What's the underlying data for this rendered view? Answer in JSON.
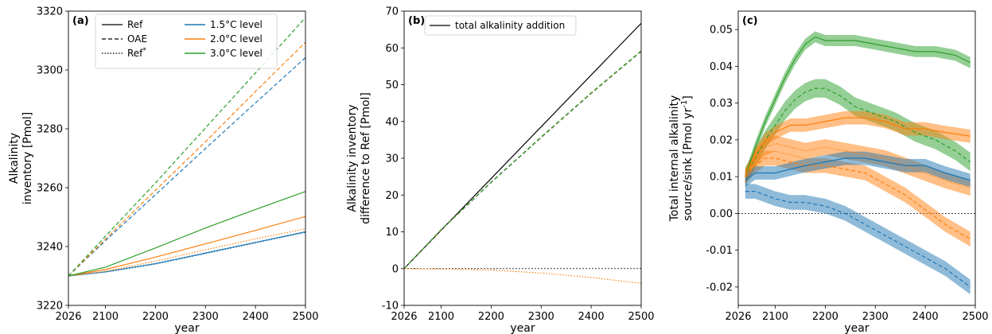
{
  "chart_data": [
    {
      "panel": "a",
      "type": "line",
      "panel_label": "(a)",
      "xlabel": "year",
      "ylabel": [
        "Alkalinity",
        "inventory [Pmol]"
      ],
      "xlim": [
        2026,
        2500
      ],
      "ylim": [
        3220,
        3320
      ],
      "xticks": [
        2026,
        2100,
        2200,
        2300,
        2400,
        2500
      ],
      "yticks": [
        3220,
        3240,
        3260,
        3280,
        3300,
        3320
      ],
      "legend": {
        "placement": "top",
        "styles": [
          {
            "label": "Ref",
            "dash": "solid"
          },
          {
            "label": "OAE",
            "dash": "dashed"
          },
          {
            "label": "Ref*",
            "dash": "dotted"
          }
        ],
        "levels": [
          {
            "label": "1.5°C level",
            "color": "#1f77b4"
          },
          {
            "label": "2.0°C level",
            "color": "#ff7f0e"
          },
          {
            "label": "3.0°C level",
            "color": "#2ca02c"
          }
        ]
      },
      "series": [
        {
          "level": "1.5°C level",
          "style": "solid",
          "x": [
            2026,
            2100,
            2200,
            2300,
            2400,
            2500
          ],
          "y": [
            3230,
            3231.4,
            3234.2,
            3237.8,
            3241.4,
            3245.0
          ]
        },
        {
          "level": "1.5°C level",
          "style": "dotted",
          "x": [
            2026,
            2100,
            2200,
            2300,
            2400,
            2500
          ],
          "y": [
            3230,
            3231.3,
            3234.0,
            3237.6,
            3241.2,
            3244.8
          ]
        },
        {
          "level": "1.5°C level",
          "style": "dashed",
          "x": [
            2026,
            2100,
            2200,
            2300,
            2400,
            2500
          ],
          "y": [
            3230,
            3242.0,
            3257.6,
            3273.3,
            3288.8,
            3304.2
          ]
        },
        {
          "level": "2.0°C level",
          "style": "solid",
          "x": [
            2026,
            2100,
            2200,
            2300,
            2400,
            2500
          ],
          "y": [
            3230,
            3232.2,
            3236.4,
            3240.9,
            3245.5,
            3250.2
          ]
        },
        {
          "level": "2.0°C level",
          "style": "dotted",
          "x": [
            2026,
            2100,
            2200,
            2300,
            2400,
            2500
          ],
          "y": [
            3230,
            3231.6,
            3235.0,
            3238.9,
            3242.6,
            3246.0
          ]
        },
        {
          "level": "2.0°C level",
          "style": "dashed",
          "x": [
            2026,
            2100,
            2200,
            2300,
            2400,
            2500
          ],
          "y": [
            3230,
            3242.5,
            3259.1,
            3275.6,
            3292.7,
            3309.4
          ]
        },
        {
          "level": "3.0°C level",
          "style": "solid",
          "x": [
            2026,
            2100,
            2200,
            2300,
            2400,
            2500
          ],
          "y": [
            3230,
            3233.0,
            3239.5,
            3246.3,
            3252.6,
            3258.7
          ]
        },
        {
          "level": "3.0°C level",
          "style": "dashed",
          "x": [
            2026,
            2100,
            2200,
            2300,
            2400,
            2500
          ],
          "y": [
            3230,
            3243.5,
            3261.6,
            3280.3,
            3299.0,
            3317.8
          ]
        }
      ]
    },
    {
      "panel": "b",
      "type": "line",
      "panel_label": "(b)",
      "xlabel": "year",
      "ylabel": [
        "Alkalinity inventory",
        "difference to Ref [Pmol]"
      ],
      "xlim": [
        2026,
        2500
      ],
      "ylim": [
        -10,
        70
      ],
      "xticks": [
        2026,
        2100,
        2200,
        2300,
        2400,
        2500
      ],
      "yticks": [
        -10,
        0,
        10,
        20,
        30,
        40,
        50,
        60,
        70
      ],
      "reference_line": 0,
      "legend": {
        "placement": "top-left",
        "entries": [
          {
            "label": "total alkalinity addition",
            "color": "#000000",
            "dash": "solid"
          }
        ]
      },
      "series": [
        {
          "name": "total alkalinity addition",
          "color": "#000000",
          "style": "solid",
          "x": [
            2026,
            2500
          ],
          "y": [
            0,
            66.7
          ]
        },
        {
          "level": "1.5°C level",
          "color": "#1f77b4",
          "style": "dashed",
          "x": [
            2026,
            2100,
            2200,
            2300,
            2400,
            2500
          ],
          "y": [
            0,
            10.5,
            23.4,
            35.6,
            47.6,
            59.0
          ]
        },
        {
          "level": "2.0°C level",
          "color": "#ff7f0e",
          "style": "dashed",
          "x": [
            2026,
            2100,
            2200,
            2300,
            2400,
            2500
          ],
          "y": [
            0,
            10.5,
            23.5,
            35.7,
            47.7,
            59.1
          ]
        },
        {
          "level": "3.0°C level",
          "color": "#2ca02c",
          "style": "dashed",
          "x": [
            2026,
            2100,
            2200,
            2300,
            2400,
            2500
          ],
          "y": [
            0,
            10.6,
            23.5,
            35.8,
            47.8,
            59.2
          ]
        },
        {
          "level": "2.0°C level",
          "color": "#ff7f0e",
          "style": "dotted",
          "x": [
            2026,
            2100,
            2200,
            2300,
            2400,
            2500
          ],
          "y": [
            0,
            -0.1,
            -0.4,
            -1.2,
            -2.4,
            -4.0
          ]
        }
      ]
    },
    {
      "panel": "c",
      "type": "line",
      "panel_label": "(c)",
      "xlabel": "year",
      "ylabel": [
        "Total internal alkalinity",
        "source/sink [Pmol yr^-1]"
      ],
      "xlim": [
        2026,
        2500
      ],
      "ylim": [
        -0.025,
        0.055
      ],
      "xticks": [
        2026,
        2100,
        2200,
        2300,
        2400,
        2500
      ],
      "yticks": [
        -0.02,
        -0.01,
        0.0,
        0.01,
        0.02,
        0.03,
        0.04,
        0.05
      ],
      "ytick_labels": [
        "-0.02",
        "-0.01",
        "0.00",
        "0.01",
        "0.02",
        "0.03",
        "0.04",
        "0.05"
      ],
      "reference_line": 0,
      "series": [
        {
          "level": "3.0°C level",
          "color": "#2ca02c",
          "style": "solid",
          "x": [
            2040,
            2060,
            2080,
            2100,
            2120,
            2140,
            2160,
            2180,
            2200,
            2230,
            2260,
            2300,
            2340,
            2380,
            2420,
            2460,
            2490
          ],
          "y": [
            0.01,
            0.018,
            0.025,
            0.031,
            0.037,
            0.042,
            0.046,
            0.048,
            0.047,
            0.047,
            0.047,
            0.046,
            0.045,
            0.044,
            0.044,
            0.043,
            0.041
          ],
          "band": 0.0015
        },
        {
          "level": "3.0°C level",
          "color": "#2ca02c",
          "style": "dashed",
          "x": [
            2040,
            2060,
            2080,
            2100,
            2120,
            2140,
            2160,
            2180,
            2200,
            2230,
            2260,
            2300,
            2340,
            2380,
            2420,
            2460,
            2490
          ],
          "y": [
            0.01,
            0.015,
            0.02,
            0.024,
            0.028,
            0.031,
            0.033,
            0.034,
            0.034,
            0.032,
            0.029,
            0.027,
            0.025,
            0.022,
            0.02,
            0.017,
            0.014
          ],
          "band": 0.0025
        },
        {
          "level": "2.0°C level",
          "color": "#ff7f0e",
          "style": "solid",
          "x": [
            2040,
            2060,
            2080,
            2100,
            2130,
            2160,
            2200,
            2240,
            2280,
            2320,
            2360,
            2400,
            2440,
            2490
          ],
          "y": [
            0.01,
            0.016,
            0.02,
            0.022,
            0.024,
            0.024,
            0.025,
            0.026,
            0.026,
            0.025,
            0.023,
            0.023,
            0.022,
            0.021
          ],
          "band": 0.0018
        },
        {
          "level": "2.0°C level",
          "color": "#ff7f0e",
          "style": "dotted",
          "x": [
            2040,
            2060,
            2080,
            2100,
            2130,
            2160,
            2200,
            2240,
            2280,
            2320,
            2360,
            2400,
            2440,
            2490
          ],
          "y": [
            0.01,
            0.015,
            0.018,
            0.019,
            0.018,
            0.017,
            0.018,
            0.017,
            0.016,
            0.015,
            0.013,
            0.011,
            0.009,
            0.007
          ],
          "band": 0.0022
        },
        {
          "level": "2.0°C level",
          "color": "#ff7f0e",
          "style": "dashed",
          "x": [
            2040,
            2060,
            2080,
            2100,
            2130,
            2160,
            2200,
            2240,
            2280,
            2320,
            2360,
            2400,
            2440,
            2490
          ],
          "y": [
            0.01,
            0.013,
            0.015,
            0.015,
            0.014,
            0.013,
            0.013,
            0.012,
            0.011,
            0.008,
            0.005,
            0.001,
            -0.003,
            -0.007
          ],
          "band": 0.002
        },
        {
          "level": "1.5°C level",
          "color": "#1f77b4",
          "style": "solid",
          "x": [
            2040,
            2060,
            2080,
            2100,
            2130,
            2160,
            2200,
            2240,
            2280,
            2320,
            2360,
            2400,
            2440,
            2490
          ],
          "y": [
            0.009,
            0.011,
            0.011,
            0.011,
            0.012,
            0.013,
            0.014,
            0.015,
            0.015,
            0.014,
            0.013,
            0.013,
            0.011,
            0.009
          ],
          "band": 0.0018
        },
        {
          "level": "1.5°C level",
          "color": "#1f77b4",
          "style": "dashed",
          "x": [
            2040,
            2060,
            2080,
            2100,
            2130,
            2160,
            2200,
            2240,
            2280,
            2320,
            2360,
            2400,
            2440,
            2490
          ],
          "y": [
            0.006,
            0.006,
            0.005,
            0.004,
            0.003,
            0.003,
            0.002,
            0.0,
            -0.003,
            -0.006,
            -0.009,
            -0.012,
            -0.015,
            -0.02
          ],
          "band": 0.002
        }
      ]
    }
  ]
}
